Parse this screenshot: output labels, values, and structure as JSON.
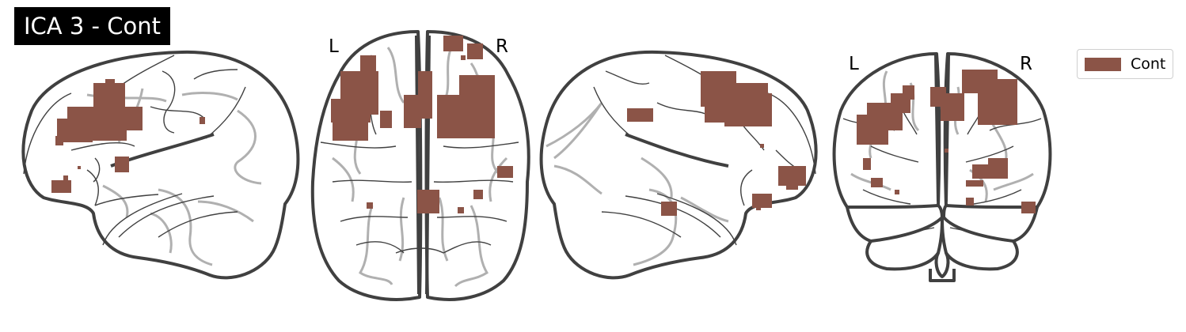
{
  "title": "ICA 3 - Cont",
  "colors": {
    "blob": "#8b5447",
    "outline": "#404040",
    "ghost": "#b0b0b0"
  },
  "views": {
    "axial": {
      "left_label": "L",
      "right_label": "R"
    },
    "coronal": {
      "left_label": "L",
      "right_label": "R"
    }
  },
  "legend": {
    "label": "Cont",
    "color": "#8b5447"
  }
}
